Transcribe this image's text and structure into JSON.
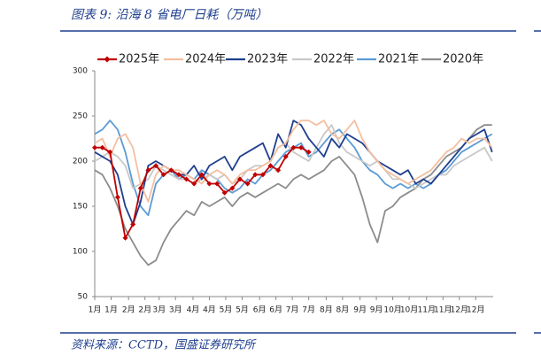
{
  "chart_data": {
    "type": "line",
    "title": "图表 9:  沿海 8 省电厂日耗（万吨）",
    "source": "资料来源：CCTD，国盛证券研究所",
    "x": [
      0,
      7,
      14,
      21,
      28,
      35,
      42,
      49,
      56,
      63,
      70,
      77,
      84,
      91,
      98,
      105,
      112,
      119,
      126,
      133,
      140,
      147,
      154,
      161,
      168,
      175,
      182,
      189,
      196,
      203,
      210,
      217,
      224,
      231,
      238,
      245,
      252,
      259,
      266,
      273,
      280,
      287,
      294,
      301,
      308,
      315,
      322,
      329,
      336,
      343,
      350,
      357,
      364
    ],
    "xlim": [
      0,
      365
    ],
    "xticks": [
      {
        "value": 0,
        "label": "1月"
      },
      {
        "value": 15,
        "label": "1月"
      },
      {
        "value": 31,
        "label": "2月"
      },
      {
        "value": 46,
        "label": "2月"
      },
      {
        "value": 59,
        "label": "3月"
      },
      {
        "value": 74,
        "label": "3月"
      },
      {
        "value": 90,
        "label": "4月"
      },
      {
        "value": 105,
        "label": "4月"
      },
      {
        "value": 120,
        "label": "5月"
      },
      {
        "value": 135,
        "label": "5月"
      },
      {
        "value": 151,
        "label": "6月"
      },
      {
        "value": 166,
        "label": "6月"
      },
      {
        "value": 181,
        "label": "7月"
      },
      {
        "value": 196,
        "label": "7月"
      },
      {
        "value": 212,
        "label": "8月"
      },
      {
        "value": 227,
        "label": "8月"
      },
      {
        "value": 243,
        "label": "9月"
      },
      {
        "value": 258,
        "label": "9月"
      },
      {
        "value": 273,
        "label": "10月"
      },
      {
        "value": 288,
        "label": "10月"
      },
      {
        "value": 304,
        "label": "11月"
      },
      {
        "value": 319,
        "label": "11月"
      },
      {
        "value": 334,
        "label": "12月"
      },
      {
        "value": 349,
        "label": "12月"
      }
    ],
    "ylim": [
      50,
      300
    ],
    "yticks": [
      50,
      100,
      150,
      200,
      250,
      300
    ],
    "series": [
      {
        "name": "2025年",
        "color": "#c00000",
        "marker": true,
        "values": [
          215,
          215,
          210,
          160,
          115,
          130,
          170,
          190,
          195,
          185,
          190,
          185,
          180,
          175,
          185,
          175,
          175,
          165,
          170,
          180,
          175,
          185,
          185,
          195,
          190,
          205,
          215,
          215,
          210,
          null,
          null,
          null,
          null,
          null,
          null,
          null,
          null,
          null,
          null,
          null,
          null,
          null,
          null,
          null,
          null,
          null,
          null,
          null,
          null,
          null,
          null,
          null,
          null
        ]
      },
      {
        "name": "2024年",
        "color": "#f4bfa0",
        "marker": false,
        "values": [
          220,
          225,
          205,
          225,
          230,
          215,
          175,
          155,
          185,
          195,
          190,
          190,
          185,
          180,
          175,
          185,
          190,
          185,
          175,
          185,
          190,
          190,
          195,
          200,
          215,
          220,
          235,
          245,
          245,
          240,
          245,
          230,
          225,
          235,
          245,
          225,
          210,
          200,
          190,
          185,
          180,
          175,
          180,
          185,
          190,
          200,
          210,
          215,
          225,
          220,
          225,
          225,
          215
        ]
      },
      {
        "name": "2023年",
        "color": "#1f3f8f",
        "marker": false,
        "values": [
          210,
          205,
          200,
          185,
          150,
          130,
          155,
          195,
          200,
          195,
          190,
          185,
          185,
          195,
          180,
          195,
          200,
          205,
          190,
          205,
          210,
          215,
          220,
          200,
          230,
          215,
          245,
          240,
          225,
          215,
          205,
          225,
          215,
          230,
          225,
          220,
          210,
          200,
          195,
          190,
          185,
          190,
          175,
          180,
          175,
          185,
          195,
          205,
          215,
          225,
          230,
          235,
          210
        ]
      },
      {
        "name": "2022年",
        "color": "#c8c8c8",
        "marker": false,
        "values": [
          200,
          205,
          210,
          205,
          195,
          170,
          175,
          180,
          195,
          190,
          185,
          180,
          180,
          175,
          180,
          185,
          180,
          185,
          175,
          180,
          190,
          195,
          195,
          200,
          215,
          220,
          210,
          205,
          200,
          215,
          230,
          240,
          220,
          210,
          205,
          200,
          195,
          200,
          190,
          180,
          180,
          175,
          170,
          175,
          180,
          185,
          185,
          195,
          200,
          205,
          210,
          215,
          200
        ]
      },
      {
        "name": "2021年",
        "color": "#5b9bd5",
        "marker": false,
        "values": [
          230,
          235,
          245,
          235,
          210,
          175,
          150,
          140,
          175,
          185,
          190,
          180,
          185,
          180,
          190,
          185,
          180,
          170,
          165,
          170,
          180,
          175,
          185,
          190,
          200,
          210,
          215,
          220,
          205,
          210,
          220,
          230,
          235,
          225,
          215,
          200,
          190,
          185,
          175,
          170,
          175,
          170,
          175,
          170,
          175,
          185,
          190,
          200,
          210,
          215,
          220,
          225,
          230
        ]
      },
      {
        "name": "2020年",
        "color": "#8c8c8c",
        "marker": false,
        "values": [
          190,
          185,
          170,
          150,
          125,
          110,
          95,
          85,
          90,
          110,
          125,
          135,
          145,
          140,
          155,
          150,
          155,
          160,
          150,
          160,
          165,
          160,
          165,
          170,
          175,
          170,
          180,
          185,
          180,
          185,
          190,
          200,
          205,
          195,
          185,
          160,
          130,
          110,
          145,
          150,
          160,
          165,
          170,
          180,
          185,
          195,
          205,
          210,
          215,
          225,
          235,
          240,
          240
        ]
      }
    ]
  }
}
